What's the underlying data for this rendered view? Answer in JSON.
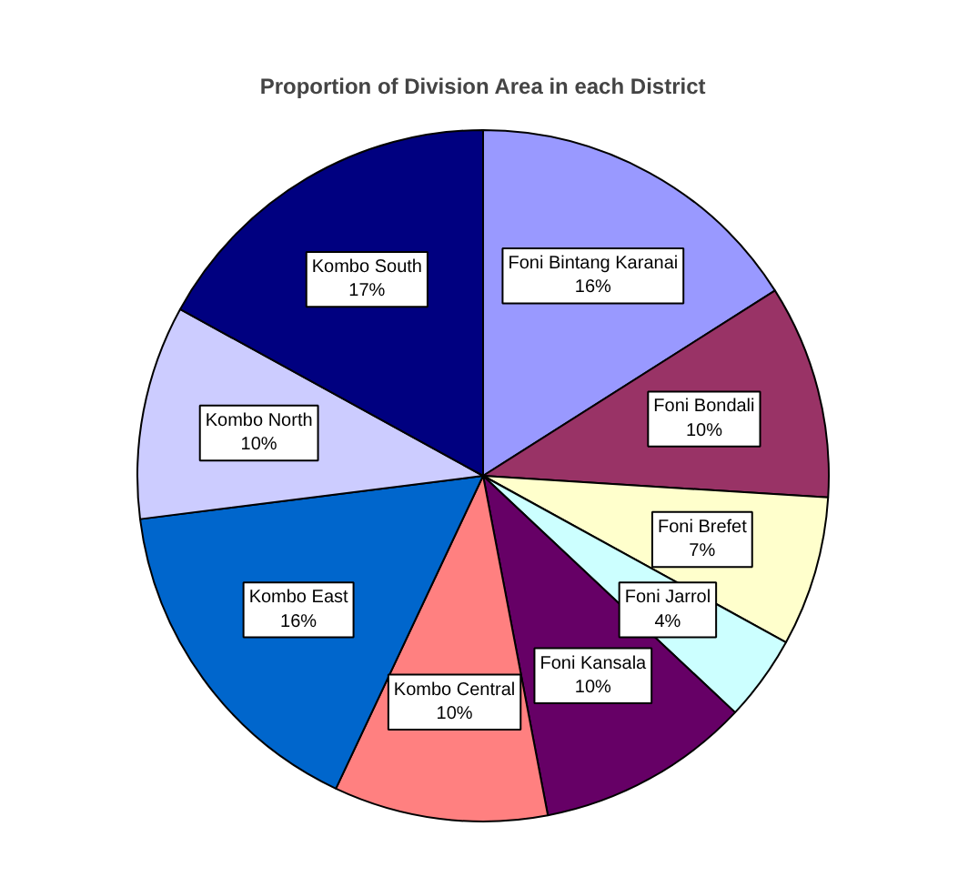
{
  "chart_data": {
    "type": "pie",
    "title": "Proportion of Division Area in each District",
    "categories": [
      "Foni Bintang Karanai",
      "Foni Bondali",
      "Foni Brefet",
      "Foni Jarrol",
      "Foni Kansala",
      "Kombo Central",
      "Kombo East",
      "Kombo North",
      "Kombo South"
    ],
    "values": [
      16,
      10,
      7,
      4,
      10,
      10,
      16,
      10,
      17
    ],
    "value_labels": [
      "16%",
      "10%",
      "7%",
      "4%",
      "10%",
      "10%",
      "16%",
      "10%",
      "17%"
    ],
    "colors": [
      "#9999ff",
      "#993366",
      "#ffffcc",
      "#ccffff",
      "#660066",
      "#ff8080",
      "#0066cc",
      "#ccccff",
      "#000080"
    ]
  }
}
